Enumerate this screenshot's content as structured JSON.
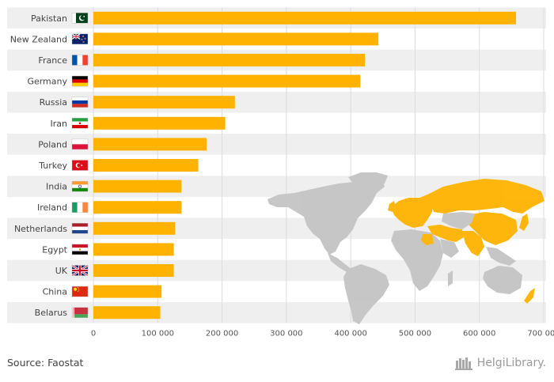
{
  "chart_data": {
    "type": "bar",
    "orientation": "horizontal",
    "categories": [
      "Pakistan",
      "New Zealand",
      "France",
      "Germany",
      "Russia",
      "Iran",
      "Poland",
      "Turkey",
      "India",
      "Ireland",
      "Netherlands",
      "Egypt",
      "UK",
      "China",
      "Belarus"
    ],
    "values": [
      657000,
      443000,
      422000,
      415000,
      220000,
      205000,
      176000,
      163000,
      137000,
      137000,
      127000,
      125000,
      125000,
      106000,
      104000
    ],
    "flags": [
      "pakistan-flag",
      "new-zealand-flag",
      "france-flag",
      "germany-flag",
      "russia-flag",
      "iran-flag",
      "poland-flag",
      "turkey-flag",
      "india-flag",
      "ireland-flag",
      "netherlands-flag",
      "egypt-flag",
      "uk-flag",
      "china-flag",
      "belarus-flag"
    ],
    "xlim": [
      0,
      700000
    ],
    "xticks": [
      0,
      100000,
      200000,
      300000,
      400000,
      500000,
      600000,
      700000
    ],
    "xtick_labels": [
      "0",
      "100 000",
      "200 000",
      "300 000",
      "400 000",
      "500 000",
      "600 000",
      "700 000"
    ],
    "title": "",
    "xlabel": "",
    "ylabel": "",
    "grid": true,
    "legend": "none",
    "bar_color": "#FFB300",
    "stripe_color": "#EFEFEF",
    "map_highlight_color": "#FFB300",
    "map_base_color": "#C4C4C4"
  },
  "footer": {
    "source": "Source: Faostat",
    "brand": "HelgiLibrary."
  }
}
